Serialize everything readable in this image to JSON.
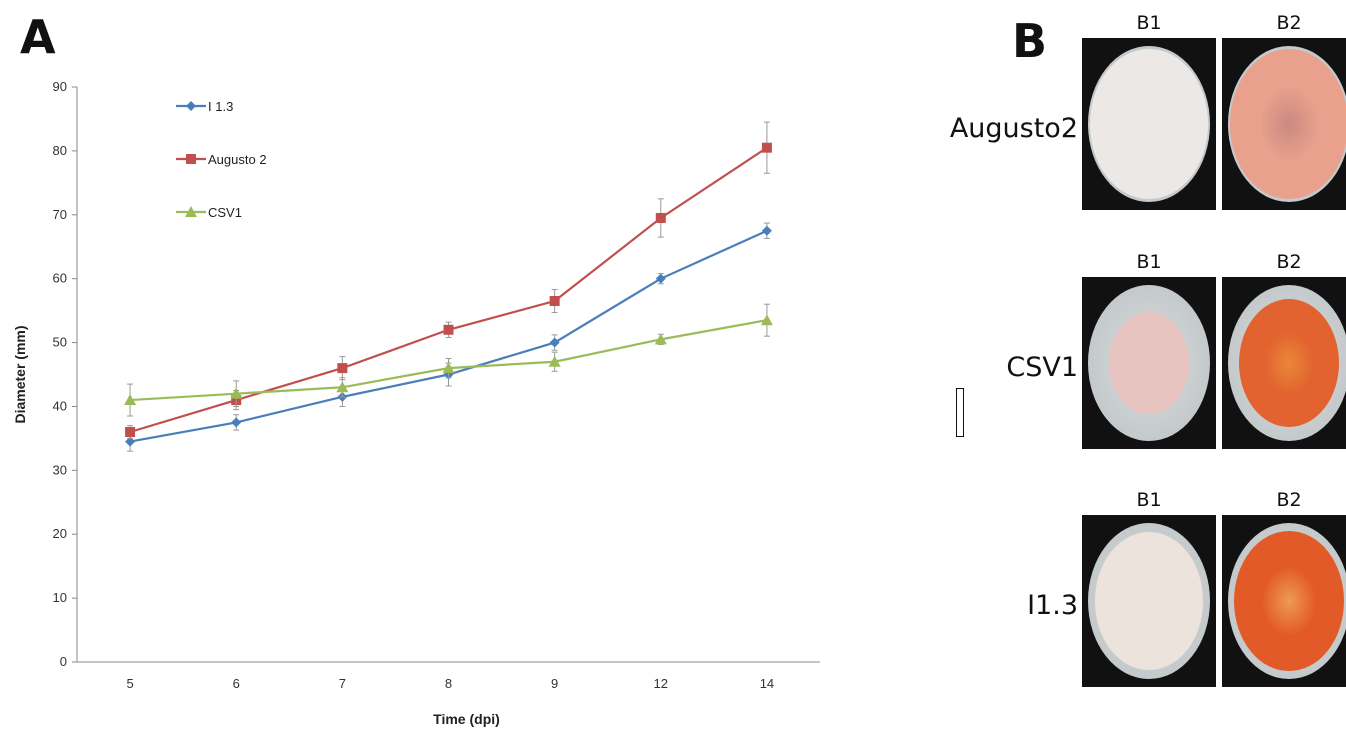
{
  "panel_a": {
    "label": "A",
    "chart_data": {
      "type": "line",
      "title": "",
      "xlabel": "Time (dpi)",
      "ylabel": "Diameter (mm)",
      "categories": [
        "5",
        "6",
        "7",
        "8",
        "9",
        "12",
        "14"
      ],
      "yticks": [
        "0",
        "10",
        "20",
        "30",
        "40",
        "50",
        "60",
        "70",
        "80",
        "90"
      ],
      "ylim": [
        0,
        90
      ],
      "grid": false,
      "legend_position": "top-left",
      "error_bars": true,
      "series": [
        {
          "name": "I 1.3",
          "color": "#4a7ebb",
          "marker": "diamond",
          "values": [
            34.5,
            37.5,
            41.5,
            45,
            50,
            60,
            67.5
          ],
          "errors": [
            1.5,
            1.2,
            1.5,
            1.8,
            1.2,
            0.8,
            1.2
          ]
        },
        {
          "name": "Augusto 2",
          "color": "#c0504d",
          "marker": "square",
          "values": [
            36,
            41,
            46,
            52,
            56.5,
            69.5,
            80.5
          ],
          "errors": [
            1.0,
            1.5,
            1.8,
            1.2,
            1.8,
            3.0,
            4.0
          ]
        },
        {
          "name": "CSV1",
          "color": "#9bbb59",
          "marker": "triangle",
          "values": [
            41,
            42,
            43,
            46,
            47,
            50.5,
            53.5
          ],
          "errors": [
            2.5,
            2.0,
            1.5,
            1.5,
            1.5,
            0.8,
            2.5
          ]
        }
      ]
    }
  },
  "panel_b": {
    "label": "B",
    "rows": [
      {
        "name": "Augusto2",
        "col1": "B1",
        "col2": "B2",
        "b1_colony": "#ece8e6",
        "b2_colony": "#e9a08c",
        "b2_center": "#c98a80"
      },
      {
        "name": "CSV1",
        "col1": "B1",
        "col2": "B2",
        "b1_colony": "#e8c4c0",
        "b2_colony": "#e2632f",
        "b2_center": "#e9883a"
      },
      {
        "name": "I1.3",
        "col1": "B1",
        "col2": "B2",
        "b1_colony": "#ebe3dc",
        "b2_colony": "#e25a28",
        "b2_center": "#ee9a55"
      }
    ]
  }
}
